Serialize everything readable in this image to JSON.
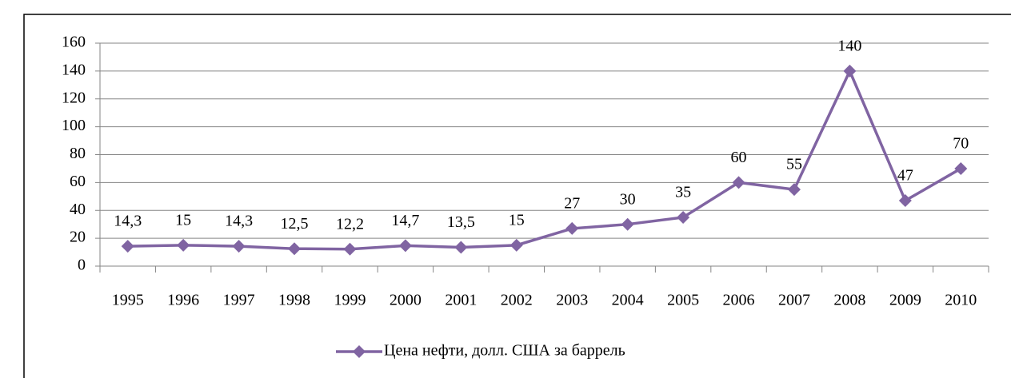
{
  "chart_data": {
    "type": "line",
    "categories": [
      "1995",
      "1996",
      "1997",
      "1998",
      "1999",
      "2000",
      "2001",
      "2002",
      "2003",
      "2004",
      "2005",
      "2006",
      "2007",
      "2008",
      "2009",
      "2010"
    ],
    "series": [
      {
        "name": "Цена нефти, долл. США за баррель",
        "color": "#8064a2",
        "values": [
          14.3,
          15,
          14.3,
          12.5,
          12.2,
          14.7,
          13.5,
          15,
          27,
          30,
          35,
          60,
          55,
          140,
          47,
          70
        ],
        "value_labels": [
          "14,3",
          "15",
          "14,3",
          "12,5",
          "12,2",
          "14,7",
          "13,5",
          "15",
          "27",
          "30",
          "35",
          "60",
          "55",
          "140",
          "47",
          "70"
        ]
      }
    ],
    "ylim": [
      0,
      160
    ],
    "yticks": [
      0,
      20,
      40,
      60,
      80,
      100,
      120,
      140,
      160
    ],
    "grid": true,
    "legend": "bottom"
  }
}
